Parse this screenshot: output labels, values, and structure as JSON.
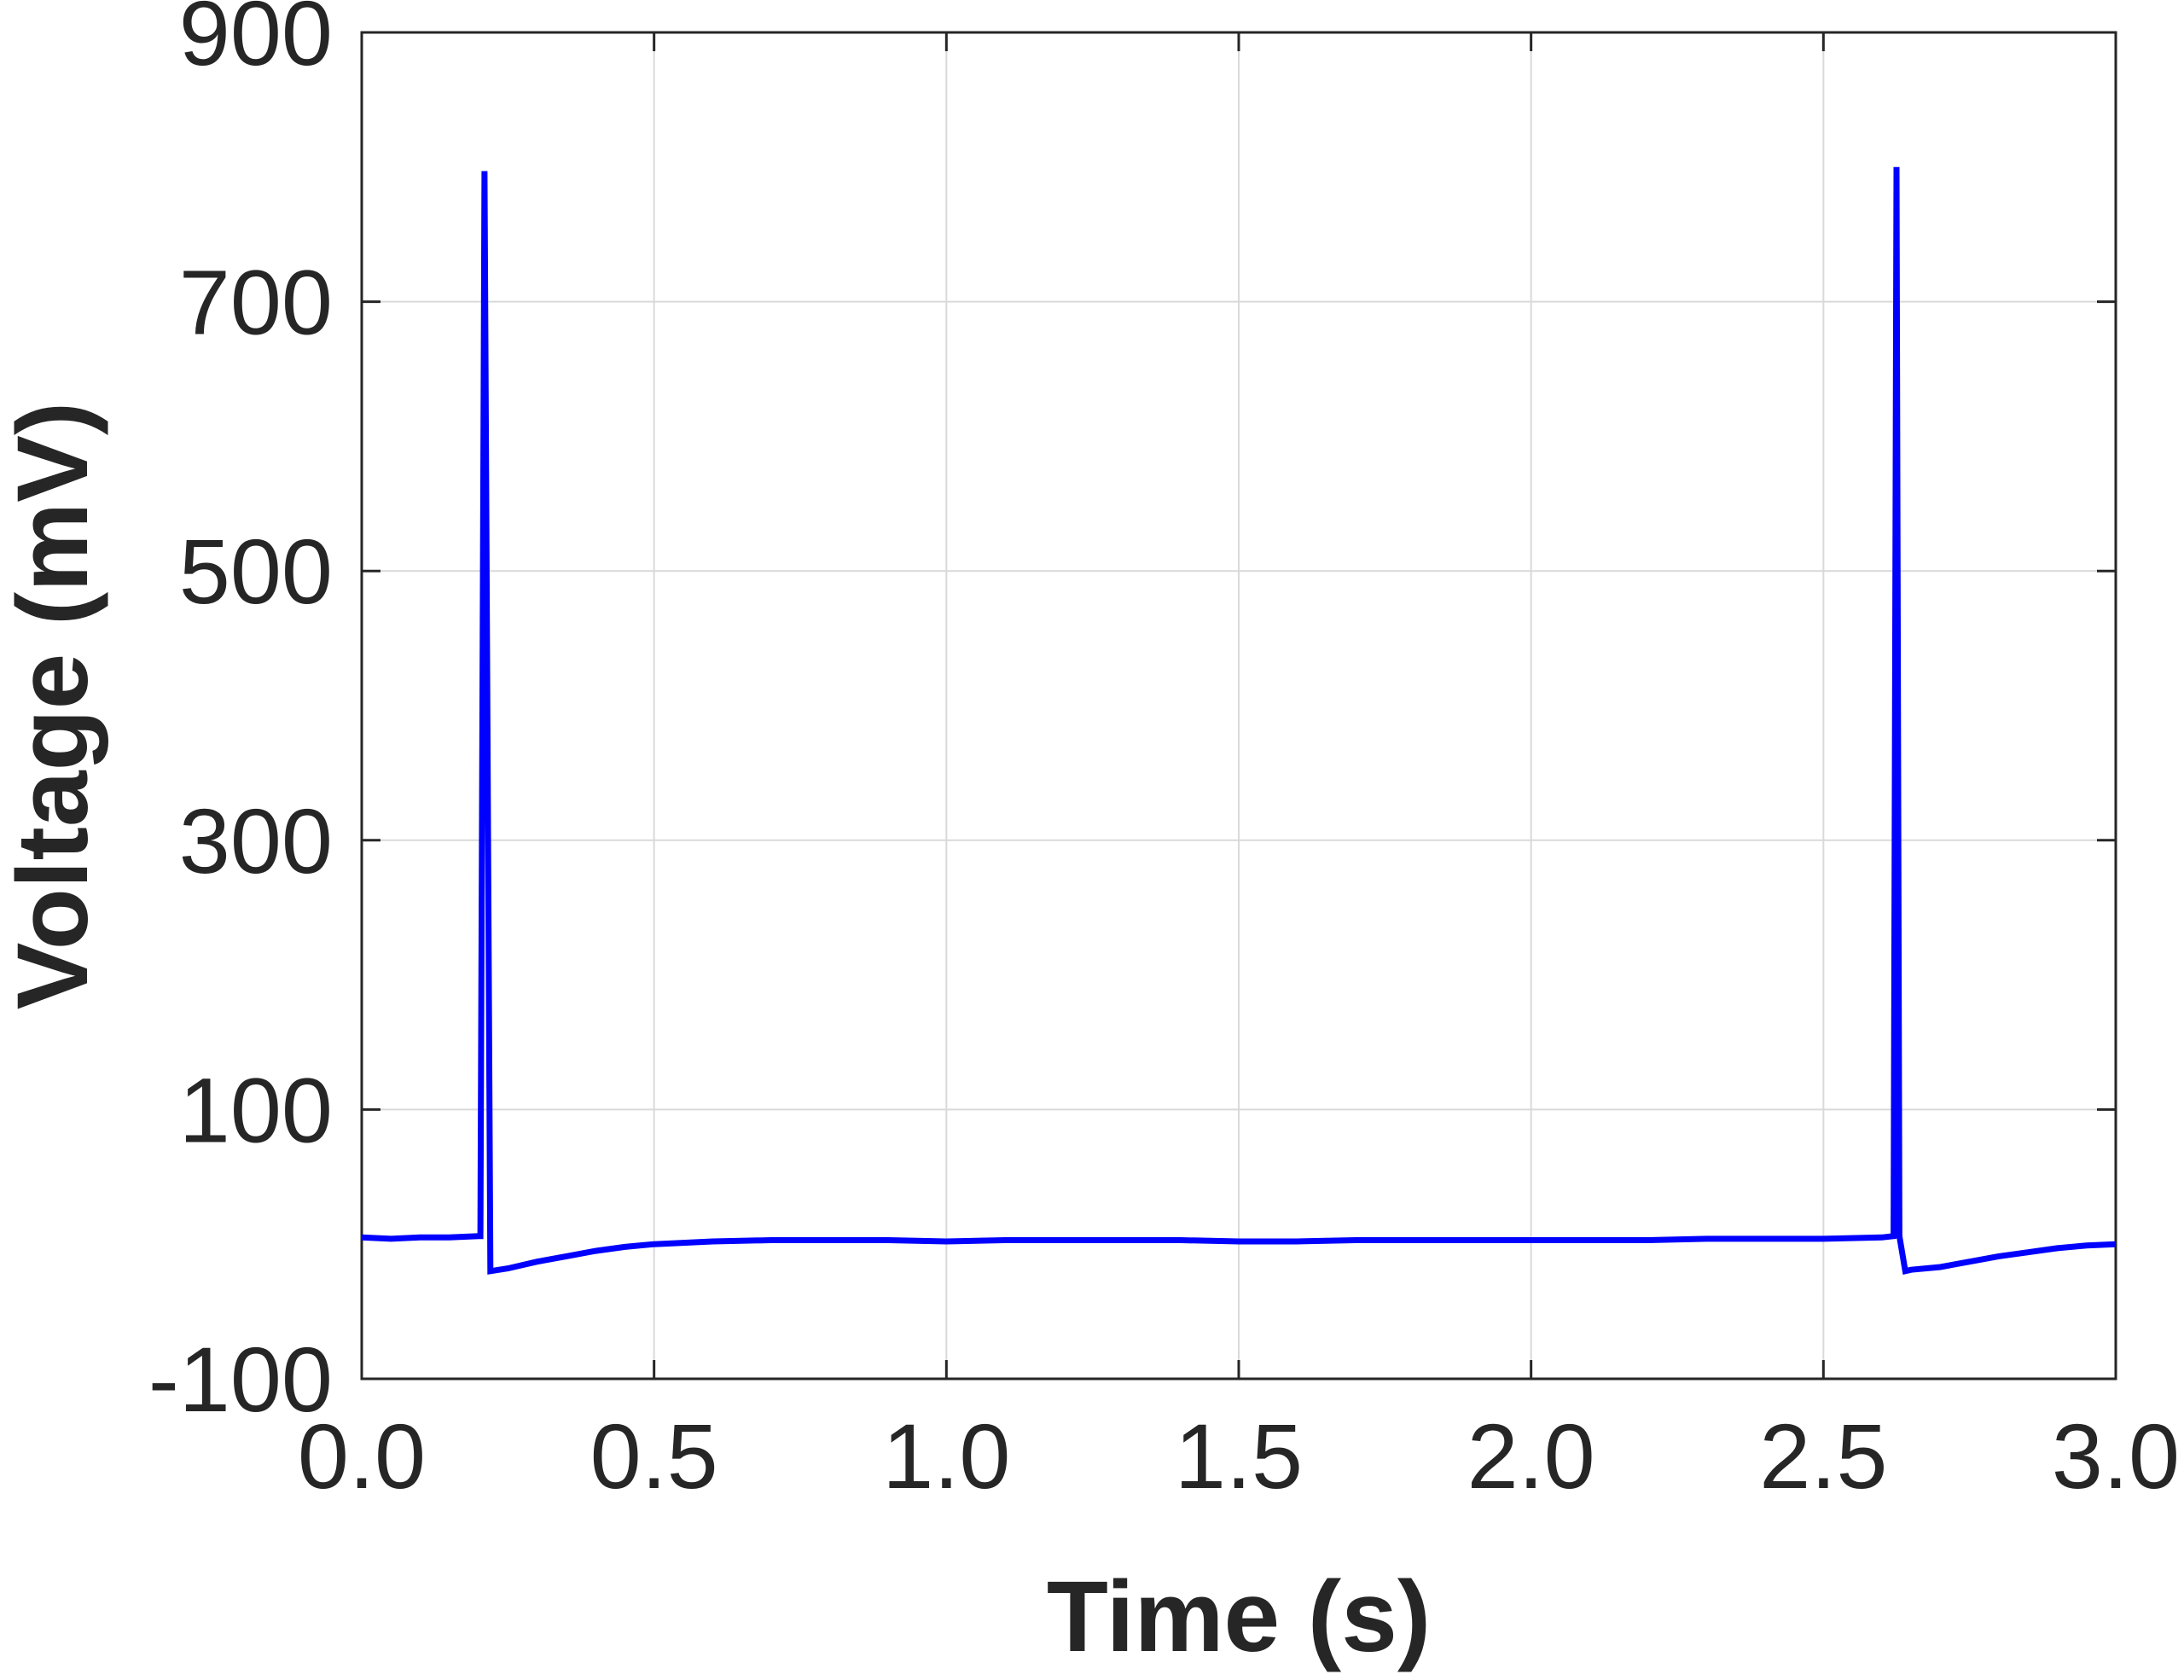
{
  "chart_data": {
    "type": "line",
    "xlabel": "Time (s)",
    "ylabel": "Voltage (mV)",
    "xlim": [
      0,
      3
    ],
    "ylim": [
      -100,
      900
    ],
    "xticks": [
      "0.0",
      "0.5",
      "1.0",
      "1.5",
      "2.0",
      "2.5",
      "3.0"
    ],
    "yticks": [
      "-100",
      "100",
      "300",
      "500",
      "700",
      "900"
    ],
    "grid": true,
    "colors": {
      "series": "#0000ff",
      "axis": "#262626",
      "grid": "#d9d9d9"
    },
    "series": [
      {
        "x": [
          0.0,
          0.05,
          0.1,
          0.15,
          0.2,
          0.203,
          0.21,
          0.22,
          0.25,
          0.3,
          0.35,
          0.4,
          0.45,
          0.5,
          0.6,
          0.7,
          0.8,
          0.9,
          1.0,
          1.1,
          1.2,
          1.3,
          1.4,
          1.5,
          1.6,
          1.7,
          1.8,
          1.9,
          2.0,
          2.1,
          2.2,
          2.3,
          2.4,
          2.5,
          2.6,
          2.62,
          2.625,
          2.63,
          2.64,
          2.65,
          2.7,
          2.75,
          2.8,
          2.85,
          2.9,
          2.95,
          3.0
        ],
        "y": [
          5,
          4,
          5,
          5,
          6,
          6,
          797,
          -20,
          -18,
          -13,
          -9,
          -5,
          -2,
          0,
          2,
          3,
          3,
          3,
          2,
          3,
          3,
          3,
          3,
          2,
          2,
          3,
          3,
          3,
          3,
          3,
          3,
          4,
          4,
          4,
          5,
          6,
          800,
          6,
          -20,
          -19,
          -17,
          -13,
          -9,
          -6,
          -3,
          -1,
          0
        ]
      }
    ]
  }
}
